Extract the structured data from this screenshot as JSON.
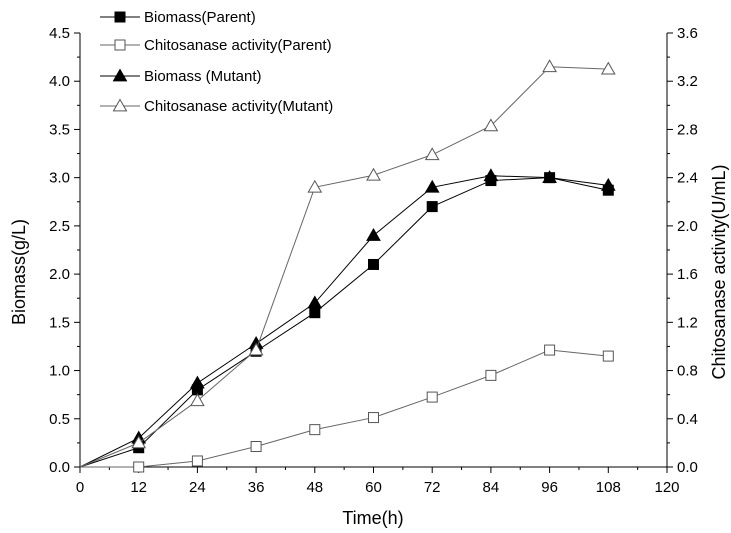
{
  "chart_data": {
    "type": "line",
    "xlabel": "Time(h)",
    "ylabel": "Biomass(g/L)",
    "y2label": "Chitosanase activity(U/mL)",
    "xlim": [
      0,
      120
    ],
    "ylim": [
      0,
      4.5
    ],
    "y2lim": [
      0,
      3.6
    ],
    "x_ticks": [
      "0",
      "12",
      "24",
      "36",
      "48",
      "60",
      "72",
      "84",
      "96",
      "108",
      "120"
    ],
    "y_ticks": [
      "0.0",
      "0.5",
      "1.0",
      "1.5",
      "2.0",
      "2.5",
      "3.0",
      "3.5",
      "4.0",
      "4.5"
    ],
    "y2_ticks": [
      "0.0",
      "0.4",
      "0.8",
      "1.2",
      "1.6",
      "2.0",
      "2.4",
      "2.8",
      "3.2",
      "3.6"
    ],
    "grid": false,
    "legend_position": "top-left",
    "series": [
      {
        "name": "Biomass(Parent)",
        "axis": "left",
        "marker": "square-filled",
        "x": [
          0,
          12,
          24,
          36,
          48,
          60,
          72,
          84,
          96,
          108
        ],
        "y": [
          0.0,
          0.2,
          0.8,
          1.2,
          1.6,
          2.1,
          2.7,
          2.97,
          3.0,
          2.87
        ]
      },
      {
        "name": "Chitosanase activity(Parent)",
        "axis": "right",
        "marker": "square-open",
        "x": [
          0,
          12,
          24,
          36,
          48,
          60,
          72,
          84,
          96,
          108
        ],
        "y": [
          0.0,
          0.0,
          0.05,
          0.17,
          0.31,
          0.41,
          0.58,
          0.76,
          0.97,
          0.92
        ]
      },
      {
        "name": "Biomass (Mutant)",
        "axis": "left",
        "marker": "triangle-filled",
        "x": [
          0,
          12,
          24,
          36,
          48,
          60,
          72,
          84,
          96,
          108
        ],
        "y": [
          0.0,
          0.3,
          0.87,
          1.28,
          1.7,
          2.4,
          2.9,
          3.02,
          3.0,
          2.92
        ]
      },
      {
        "name": "Chitosanase activity(Mutant)",
        "axis": "right",
        "marker": "triangle-open",
        "x": [
          0,
          12,
          24,
          36,
          48,
          60,
          72,
          84,
          96,
          108
        ],
        "y": [
          0.0,
          0.2,
          0.55,
          0.97,
          2.32,
          2.42,
          2.59,
          2.83,
          3.32,
          3.3
        ]
      }
    ]
  }
}
